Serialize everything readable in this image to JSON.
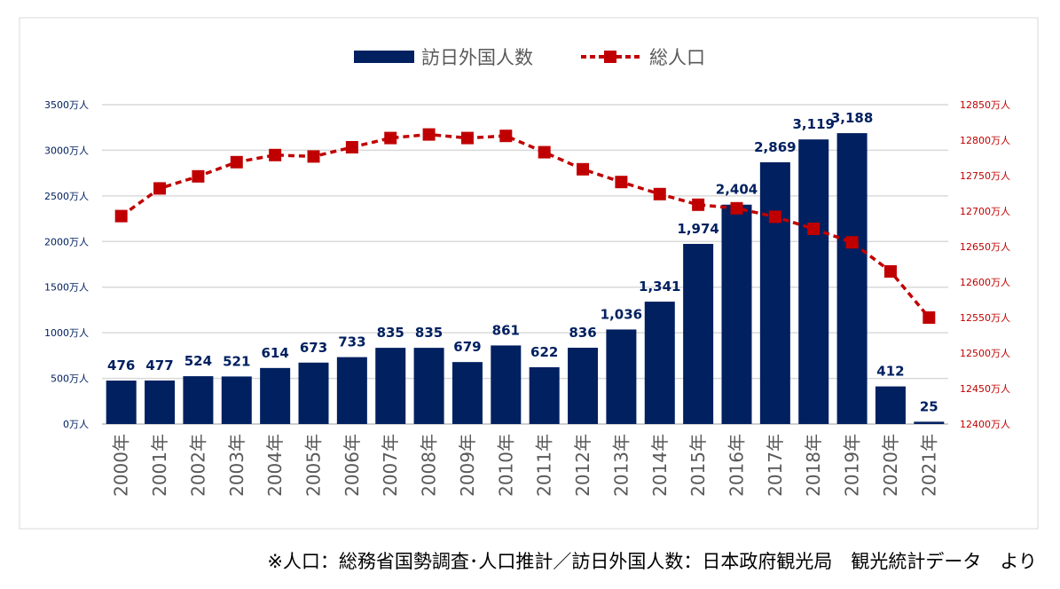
{
  "chart_data": {
    "type": "bar+line",
    "categories": [
      "2000年",
      "2001年",
      "2002年",
      "2003年",
      "2004年",
      "2005年",
      "2006年",
      "2007年",
      "2008年",
      "2009年",
      "2010年",
      "2011年",
      "2012年",
      "2013年",
      "2014年",
      "2015年",
      "2016年",
      "2017年",
      "2018年",
      "2019年",
      "2020年",
      "2021年"
    ],
    "series": [
      {
        "name": "訪日外国人数",
        "type": "bar",
        "axis": "left",
        "color": "#002060",
        "values": [
          476,
          477,
          524,
          521,
          614,
          673,
          733,
          835,
          835,
          679,
          861,
          622,
          836,
          1036,
          1341,
          1974,
          2404,
          2869,
          3119,
          3188,
          412,
          25
        ],
        "labels": [
          "476",
          "477",
          "524",
          "521",
          "614",
          "673",
          "733",
          "835",
          "835",
          "679",
          "861",
          "622",
          "836",
          "1,036",
          "1,341",
          "1,974",
          "2,404",
          "2,869",
          "3,119",
          "3,188",
          "412",
          "25"
        ]
      },
      {
        "name": "総人口",
        "type": "line",
        "style": "dashed",
        "marker": "square",
        "axis": "right",
        "color": "#C00000",
        "values": [
          12693,
          12732,
          12749,
          12769,
          12779,
          12777,
          12790,
          12803,
          12808,
          12803,
          12806,
          12783,
          12759,
          12741,
          12724,
          12709,
          12704,
          12692,
          12675,
          12656,
          12615,
          12550
        ]
      }
    ],
    "left_axis": {
      "ylim": [
        0,
        3500
      ],
      "ticks": [
        "0万人",
        "500万人",
        "1000万人",
        "1500万人",
        "2000万人",
        "2500万人",
        "3000万人",
        "3500万人"
      ]
    },
    "right_axis": {
      "ylim": [
        12400,
        12850
      ],
      "ticks": [
        "12400万人",
        "12450万人",
        "12500万人",
        "12550万人",
        "12600万人",
        "12650万人",
        "12700万人",
        "12750万人",
        "12800万人",
        "12850万人"
      ]
    },
    "legend": {
      "placement": "top-center"
    },
    "grid": true
  },
  "footnote": "※人口：総務省国勢調査･人口推計／訪日外国人数：日本政府観光局　観光統計データ　より"
}
